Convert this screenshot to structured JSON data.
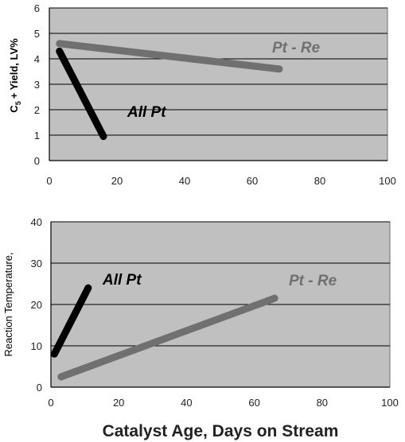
{
  "colors": {
    "plot_bg": "#c0c0c0",
    "gridline": "#000000",
    "all_pt": "#000000",
    "pt_re": "#707070"
  },
  "xlabel": "Catalyst Age, Days on Stream",
  "chart_data": [
    {
      "type": "line",
      "ylabel_main": "C",
      "ylabel_sub": "5",
      "ylabel_rest": "+ Yield, LV%",
      "xlim": [
        0,
        100
      ],
      "ylim": [
        0,
        6
      ],
      "xticks": [
        0,
        20,
        40,
        60,
        80,
        100
      ],
      "yticks": [
        0,
        1,
        2,
        3,
        4,
        5,
        6
      ],
      "grid": true,
      "series": [
        {
          "name": "All Pt",
          "color": "#000000",
          "x": [
            3,
            16
          ],
          "y": [
            4.3,
            0.95
          ]
        },
        {
          "name": "Pt - Re",
          "color": "#707070",
          "x": [
            3,
            68
          ],
          "y": [
            4.6,
            3.6
          ]
        }
      ]
    },
    {
      "type": "line",
      "ylabel": "Reaction Temperature,",
      "xlim": [
        0,
        100
      ],
      "ylim": [
        0,
        40
      ],
      "xticks": [
        0,
        20,
        40,
        60,
        80,
        100
      ],
      "yticks": [
        0,
        10,
        20,
        30,
        40
      ],
      "grid": true,
      "series": [
        {
          "name": "All Pt",
          "color": "#000000",
          "x": [
            1,
            11
          ],
          "y": [
            8,
            24
          ]
        },
        {
          "name": "Pt - Re",
          "color": "#707070",
          "x": [
            3,
            66
          ],
          "y": [
            2.5,
            21.5
          ]
        }
      ]
    }
  ]
}
